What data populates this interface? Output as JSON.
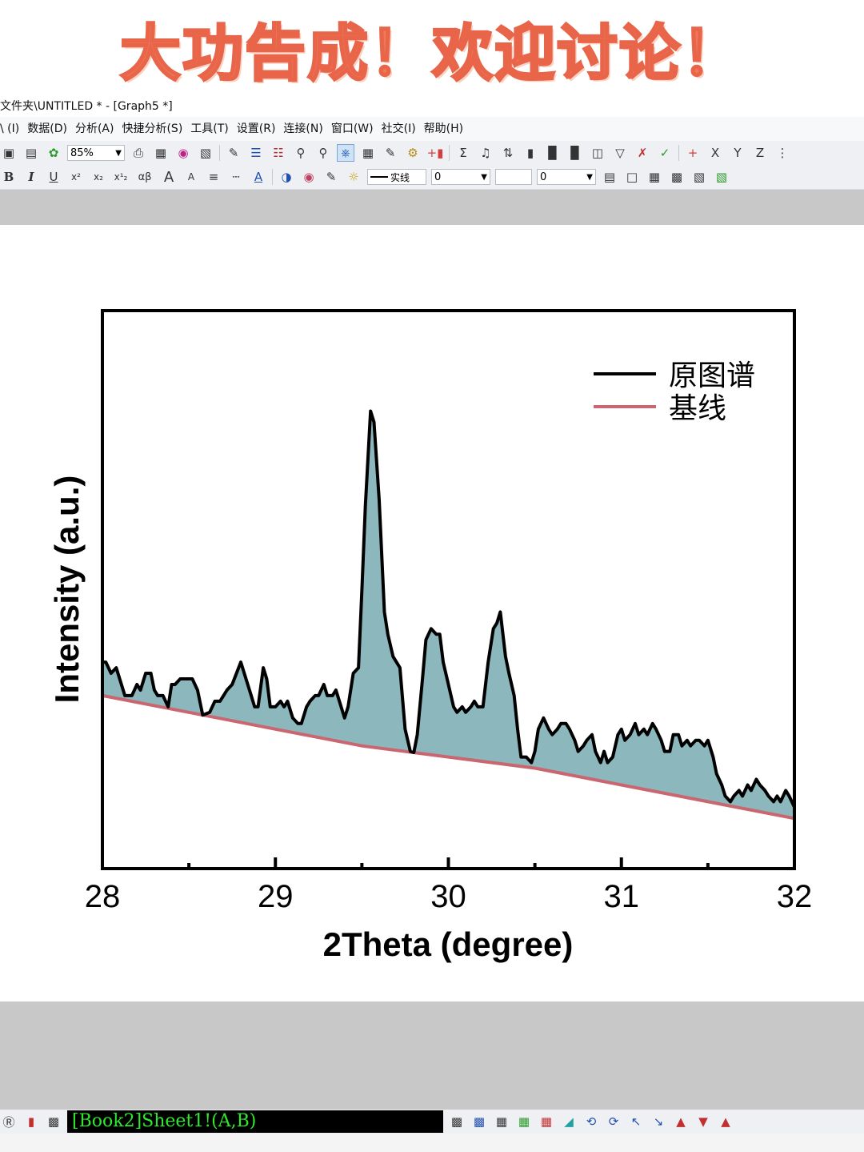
{
  "banner": {
    "text": "大功告成！欢迎讨论！"
  },
  "window": {
    "title": "文件夹\\UNTITLED * - [Graph5 *]"
  },
  "menu": {
    "items": [
      "\\ (I)",
      "数据(D)",
      "分析(A)",
      "快捷分析(S)",
      "工具(T)",
      "设置(R)",
      "连接(N)",
      "窗口(W)",
      "社交(I)",
      "帮助(H)"
    ]
  },
  "toolbar": {
    "zoom": "85%",
    "line_style": "实线",
    "line_width": "0",
    "size_value": "0",
    "text_buttons": {
      "bold": "B",
      "italic": "I",
      "underline": "U",
      "superscript": "x²",
      "subscript": "x₂",
      "supsub": "x¹₂",
      "greek": "αβ",
      "increase": "A",
      "decrease": "A",
      "xbutton": "X",
      "ybutton": "Y",
      "zbutton": "Z"
    }
  },
  "statusbar": {
    "worksheet": "[Book2]Sheet1!(A,B)"
  },
  "colors": {
    "banner": "#f07a58",
    "fill": "#8bb7bd",
    "baseline": "#c96670",
    "spectrum": "#000000",
    "status_text": "#2ee82e"
  },
  "chart_data": {
    "type": "area",
    "title": "",
    "xlabel": "2Theta (degree)",
    "ylabel": "Intensity (a.u.)",
    "xlim": [
      28,
      32
    ],
    "ylim": [
      0,
      1
    ],
    "xticks": [
      "28",
      "29",
      "30",
      "31",
      "32"
    ],
    "yticks_visible": false,
    "grid": false,
    "legend": {
      "position": "top-right",
      "entries": [
        "原图谱",
        "基线"
      ]
    },
    "series": [
      {
        "name": "原图谱",
        "color": "#000000",
        "x": [
          28.0,
          28.02,
          28.05,
          28.08,
          28.1,
          28.13,
          28.17,
          28.2,
          28.22,
          28.25,
          28.28,
          28.3,
          28.32,
          28.35,
          28.38,
          28.4,
          28.42,
          28.45,
          28.5,
          28.52,
          28.55,
          28.58,
          28.62,
          28.65,
          28.68,
          28.7,
          28.72,
          28.75,
          28.8,
          28.83,
          28.86,
          28.88,
          28.9,
          28.93,
          28.95,
          28.97,
          29.0,
          29.03,
          29.05,
          29.07,
          29.1,
          29.13,
          29.15,
          29.18,
          29.2,
          29.23,
          29.25,
          29.28,
          29.3,
          29.33,
          29.35,
          29.38,
          29.4,
          29.42,
          29.45,
          29.48,
          29.5,
          29.52,
          29.55,
          29.57,
          29.6,
          29.63,
          29.65,
          29.68,
          29.7,
          29.72,
          29.75,
          29.78,
          29.8,
          29.82,
          29.85,
          29.87,
          29.9,
          29.93,
          29.95,
          29.97,
          30.0,
          30.03,
          30.05,
          30.08,
          30.1,
          30.13,
          30.15,
          30.17,
          30.2,
          30.23,
          30.26,
          30.28,
          30.3,
          30.33,
          30.35,
          30.38,
          30.4,
          30.42,
          30.45,
          30.48,
          30.5,
          30.52,
          30.55,
          30.58,
          30.6,
          30.63,
          30.65,
          30.68,
          30.7,
          30.73,
          30.75,
          30.78,
          30.8,
          30.83,
          30.85,
          30.88,
          30.9,
          30.92,
          30.95,
          30.98,
          31.0,
          31.02,
          31.05,
          31.08,
          31.1,
          31.13,
          31.15,
          31.18,
          31.2,
          31.23,
          31.25,
          31.28,
          31.3,
          31.33,
          31.35,
          31.38,
          31.4,
          31.43,
          31.45,
          31.48,
          31.5,
          31.53,
          31.55,
          31.58,
          31.6,
          31.63,
          31.65,
          31.68,
          31.7,
          31.73,
          31.75,
          31.78,
          31.8,
          31.83,
          31.85,
          31.88,
          31.9,
          31.92,
          31.95,
          31.97,
          32.0
        ],
        "y": [
          0.37,
          0.37,
          0.35,
          0.36,
          0.34,
          0.31,
          0.31,
          0.33,
          0.32,
          0.35,
          0.35,
          0.32,
          0.31,
          0.31,
          0.29,
          0.33,
          0.33,
          0.34,
          0.34,
          0.34,
          0.32,
          0.27,
          0.28,
          0.3,
          0.3,
          0.31,
          0.32,
          0.33,
          0.37,
          0.34,
          0.31,
          0.29,
          0.29,
          0.36,
          0.34,
          0.29,
          0.29,
          0.3,
          0.29,
          0.3,
          0.27,
          0.26,
          0.26,
          0.29,
          0.3,
          0.31,
          0.31,
          0.33,
          0.31,
          0.31,
          0.32,
          0.29,
          0.27,
          0.29,
          0.35,
          0.36,
          0.5,
          0.65,
          0.82,
          0.8,
          0.66,
          0.46,
          0.42,
          0.38,
          0.37,
          0.36,
          0.25,
          0.21,
          0.2,
          0.24,
          0.34,
          0.41,
          0.43,
          0.42,
          0.42,
          0.37,
          0.33,
          0.29,
          0.28,
          0.29,
          0.28,
          0.29,
          0.3,
          0.29,
          0.29,
          0.37,
          0.43,
          0.44,
          0.46,
          0.38,
          0.35,
          0.31,
          0.25,
          0.2,
          0.2,
          0.19,
          0.21,
          0.25,
          0.27,
          0.25,
          0.24,
          0.25,
          0.26,
          0.26,
          0.25,
          0.23,
          0.21,
          0.22,
          0.23,
          0.24,
          0.21,
          0.19,
          0.21,
          0.19,
          0.2,
          0.24,
          0.25,
          0.23,
          0.24,
          0.26,
          0.24,
          0.25,
          0.24,
          0.26,
          0.25,
          0.23,
          0.21,
          0.21,
          0.24,
          0.24,
          0.22,
          0.23,
          0.22,
          0.23,
          0.23,
          0.22,
          0.23,
          0.2,
          0.17,
          0.15,
          0.13,
          0.12,
          0.13,
          0.14,
          0.13,
          0.15,
          0.14,
          0.16,
          0.15,
          0.14,
          0.13,
          0.12,
          0.13,
          0.12,
          0.14,
          0.13,
          0.11
        ]
      },
      {
        "name": "基线",
        "color": "#c96670",
        "x": [
          28.0,
          28.5,
          29.0,
          29.5,
          30.0,
          30.5,
          31.0,
          31.5,
          32.0
        ],
        "y": [
          0.31,
          0.28,
          0.25,
          0.22,
          0.2,
          0.18,
          0.15,
          0.12,
          0.09
        ]
      }
    ]
  }
}
